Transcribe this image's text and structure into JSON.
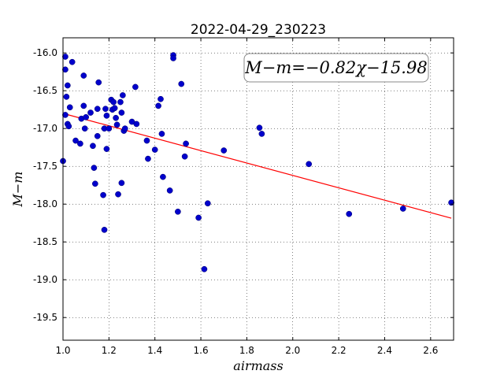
{
  "chart_data": {
    "type": "scatter",
    "title": "2022-04-29_230223",
    "xlabel": "airmass",
    "ylabel": "M−m",
    "xlim": [
      1.0,
      2.7
    ],
    "ylim": [
      -19.8,
      -15.8
    ],
    "ylim_inverted": true,
    "x_ticks": [
      "1.0",
      "1.2",
      "1.4",
      "1.6",
      "1.8",
      "2.0",
      "2.2",
      "2.4",
      "2.6"
    ],
    "y_ticks": [
      "-16.0",
      "-16.5",
      "-17.0",
      "-17.5",
      "-18.0",
      "-18.5",
      "-19.0",
      "-19.5"
    ],
    "grid": true,
    "annotation": "M−m=−0.82χ−15.98",
    "fit_line": {
      "slope": -0.82,
      "intercept": -15.98,
      "x_range": [
        1.0,
        2.69
      ],
      "color": "#ff0000"
    },
    "point_color": "#0000cc",
    "points": [
      [
        1.0,
        -17.43
      ],
      [
        1.01,
        -16.05
      ],
      [
        1.01,
        -16.22
      ],
      [
        1.01,
        -16.82
      ],
      [
        1.015,
        -16.58
      ],
      [
        1.02,
        -16.43
      ],
      [
        1.02,
        -16.94
      ],
      [
        1.025,
        -16.97
      ],
      [
        1.03,
        -16.72
      ],
      [
        1.04,
        -16.12
      ],
      [
        1.055,
        -17.16
      ],
      [
        1.075,
        -17.2
      ],
      [
        1.08,
        -16.87
      ],
      [
        1.09,
        -16.7
      ],
      [
        1.09,
        -16.3
      ],
      [
        1.095,
        -17.0
      ],
      [
        1.1,
        -16.85
      ],
      [
        1.12,
        -16.79
      ],
      [
        1.13,
        -17.23
      ],
      [
        1.135,
        -17.52
      ],
      [
        1.14,
        -17.73
      ],
      [
        1.15,
        -17.1
      ],
      [
        1.15,
        -16.74
      ],
      [
        1.155,
        -16.39
      ],
      [
        1.175,
        -17.88
      ],
      [
        1.18,
        -18.34
      ],
      [
        1.18,
        -17.0
      ],
      [
        1.185,
        -16.74
      ],
      [
        1.19,
        -16.83
      ],
      [
        1.19,
        -17.27
      ],
      [
        1.2,
        -17.0
      ],
      [
        1.21,
        -16.62
      ],
      [
        1.215,
        -16.75
      ],
      [
        1.22,
        -16.65
      ],
      [
        1.225,
        -16.73
      ],
      [
        1.23,
        -16.86
      ],
      [
        1.235,
        -16.95
      ],
      [
        1.24,
        -17.87
      ],
      [
        1.25,
        -16.65
      ],
      [
        1.255,
        -16.79
      ],
      [
        1.255,
        -17.72
      ],
      [
        1.26,
        -16.56
      ],
      [
        1.265,
        -17.03
      ],
      [
        1.27,
        -17.0
      ],
      [
        1.3,
        -16.91
      ],
      [
        1.315,
        -16.45
      ],
      [
        1.32,
        -16.94
      ],
      [
        1.365,
        -17.16
      ],
      [
        1.37,
        -17.4
      ],
      [
        1.4,
        -17.28
      ],
      [
        1.415,
        -16.7
      ],
      [
        1.425,
        -16.61
      ],
      [
        1.43,
        -17.07
      ],
      [
        1.435,
        -17.64
      ],
      [
        1.465,
        -17.82
      ],
      [
        1.48,
        -16.03
      ],
      [
        1.48,
        -16.07
      ],
      [
        1.5,
        -18.1
      ],
      [
        1.515,
        -16.41
      ],
      [
        1.53,
        -17.37
      ],
      [
        1.535,
        -17.2
      ],
      [
        1.59,
        -18.18
      ],
      [
        1.615,
        -18.86
      ],
      [
        1.63,
        -17.99
      ],
      [
        1.7,
        -17.29
      ],
      [
        1.855,
        -16.99
      ],
      [
        1.865,
        -17.07
      ],
      [
        2.07,
        -17.47
      ],
      [
        2.245,
        -18.13
      ],
      [
        2.48,
        -18.06
      ],
      [
        2.69,
        -17.98
      ]
    ]
  }
}
